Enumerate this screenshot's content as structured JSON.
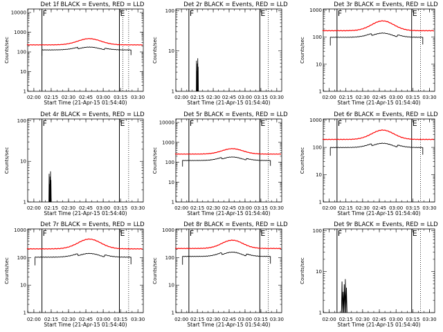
{
  "chart_data": [
    {
      "type": "line",
      "title": "Det 1f BLACK = Events, RED = LLD",
      "ylabel": "Counts/sec",
      "xlabel": "Start Time (21-Apr-15 01:54:40)",
      "xticks": [
        "02:00",
        "02:15",
        "02:30",
        "02:45",
        "03:00",
        "03:15",
        "03:30"
      ],
      "yticks": [
        "1",
        "10",
        "100",
        "1000",
        "10000"
      ],
      "ylim": [
        1,
        15000
      ],
      "xlim": [
        "01:54:40",
        "03:34:40"
      ],
      "scale_y": "log",
      "markers": [
        {
          "label": "F",
          "time": "02:07",
          "style": "solid"
        },
        {
          "label": "E",
          "time": "03:14",
          "style": "solid"
        },
        {
          "label": "",
          "time": "03:17",
          "style": "dotted"
        },
        {
          "label": "",
          "time": "03:22",
          "style": "dotted"
        }
      ],
      "series": [
        {
          "color": "#000000",
          "shape": "orbit",
          "min": 115,
          "max": 210,
          "start": "02:07",
          "end": "03:24",
          "style": "events"
        },
        {
          "color": "#ff0000",
          "shape": "orbit",
          "min": 200,
          "max": 470,
          "start": "01:54",
          "end": "03:34",
          "style": "lld"
        }
      ]
    },
    {
      "type": "line",
      "title": "Det 2r BLACK = Events, RED = LLD",
      "ylabel": "Counts/sec",
      "xlabel": "Start Time (21-Apr-15 01:54:40)",
      "xticks": [
        "02:00",
        "02:15",
        "02:30",
        "02:45",
        "03:00",
        "03:15",
        "03:30"
      ],
      "yticks": [
        "1",
        "10",
        "100"
      ],
      "ylim": [
        1,
        110
      ],
      "xlim": [
        "01:54:40",
        "03:34:40"
      ],
      "scale_y": "log",
      "markers": [
        {
          "label": "F",
          "time": "02:07",
          "style": "solid"
        },
        {
          "label": "E",
          "time": "03:14",
          "style": "solid"
        },
        {
          "label": "",
          "time": "03:22",
          "style": "dotted"
        }
      ],
      "series": [
        {
          "color": "#000000",
          "shape": "spike",
          "min": 1,
          "max": 7,
          "start": "02:14",
          "end": "02:16",
          "style": "events"
        }
      ]
    },
    {
      "type": "line",
      "title": "Det 3r BLACK = Events, RED = LLD",
      "ylabel": "Counts/sec",
      "xlabel": "Start Time (21-Apr-15 01:54:40)",
      "xticks": [
        "02:00",
        "02:15",
        "02:30",
        "02:45",
        "03:00",
        "03:15",
        "03:30"
      ],
      "yticks": [
        "1",
        "10",
        "100",
        "1000"
      ],
      "ylim": [
        1,
        1100
      ],
      "xlim": [
        "01:54:40",
        "03:34:40"
      ],
      "scale_y": "log",
      "markers": [
        {
          "label": "F",
          "time": "02:07",
          "style": "solid"
        },
        {
          "label": "E",
          "time": "03:14",
          "style": "solid"
        },
        {
          "label": "",
          "time": "03:22",
          "style": "dotted"
        }
      ],
      "series": [
        {
          "color": "#000000",
          "shape": "orbit",
          "min": 90,
          "max": 170,
          "start": "02:01",
          "end": "03:24",
          "style": "events"
        },
        {
          "color": "#ff0000",
          "shape": "orbit",
          "min": 150,
          "max": 400,
          "start": "01:54",
          "end": "03:34",
          "style": "lld"
        }
      ]
    },
    {
      "type": "line",
      "title": "Det 4r BLACK = Events, RED = LLD",
      "ylabel": "Counts/sec",
      "xlabel": "Start Time (21-Apr-15 01:54:40)",
      "xticks": [
        "02:00",
        "02:15",
        "02:30",
        "02:45",
        "03:00",
        "03:15",
        "03:30"
      ],
      "yticks": [
        "1",
        "10",
        "100"
      ],
      "ylim": [
        1,
        110
      ],
      "xlim": [
        "01:54:40",
        "03:34:40"
      ],
      "scale_y": "log",
      "markers": [
        {
          "label": "F",
          "time": "02:07",
          "style": "solid"
        },
        {
          "label": "E",
          "time": "03:14",
          "style": "solid"
        },
        {
          "label": "",
          "time": "03:22",
          "style": "dotted"
        }
      ],
      "series": [
        {
          "color": "#000000",
          "shape": "spike",
          "min": 1,
          "max": 6,
          "start": "02:13",
          "end": "02:15",
          "style": "events"
        }
      ]
    },
    {
      "type": "line",
      "title": "Det 5r BLACK = Events, RED = LLD",
      "ylabel": "Counts/sec",
      "xlabel": "Start Time (21-Apr-15 01:54:40)",
      "xticks": [
        "02:00",
        "02:15",
        "02:30",
        "02:45",
        "03:00",
        "03:15",
        "03:30"
      ],
      "yticks": [
        "1",
        "10",
        "100",
        "1000",
        "10000"
      ],
      "ylim": [
        1,
        15000
      ],
      "xlim": [
        "01:54:40",
        "03:34:40"
      ],
      "scale_y": "log",
      "markers": [
        {
          "label": "F",
          "time": "02:07",
          "style": "solid"
        },
        {
          "label": "E",
          "time": "03:14",
          "style": "solid"
        },
        {
          "label": "",
          "time": "03:22",
          "style": "dotted"
        }
      ],
      "series": [
        {
          "color": "#000000",
          "shape": "orbit",
          "min": 110,
          "max": 220,
          "start": "02:01",
          "end": "03:24",
          "style": "events"
        },
        {
          "color": "#ff0000",
          "shape": "orbit",
          "min": 230,
          "max": 480,
          "start": "01:54",
          "end": "03:34",
          "style": "lld"
        }
      ]
    },
    {
      "type": "line",
      "title": "Det 6r BLACK = Events, RED = LLD",
      "ylabel": "Counts/sec",
      "xlabel": "Start Time (21-Apr-15 01:54:40)",
      "xticks": [
        "02:00",
        "02:15",
        "02:30",
        "02:45",
        "03:00",
        "03:15",
        "03:30"
      ],
      "yticks": [
        "1",
        "10",
        "100",
        "1000"
      ],
      "ylim": [
        1,
        1100
      ],
      "xlim": [
        "01:54:40",
        "03:34:40"
      ],
      "scale_y": "log",
      "markers": [
        {
          "label": "F",
          "time": "02:07",
          "style": "solid"
        },
        {
          "label": "E",
          "time": "03:14",
          "style": "solid"
        },
        {
          "label": "",
          "time": "03:22",
          "style": "dotted"
        }
      ],
      "series": [
        {
          "color": "#000000",
          "shape": "orbit",
          "min": 90,
          "max": 170,
          "start": "02:01",
          "end": "03:24",
          "style": "events"
        },
        {
          "color": "#ff0000",
          "shape": "orbit",
          "min": 170,
          "max": 430,
          "start": "01:54",
          "end": "03:34",
          "style": "lld"
        }
      ]
    },
    {
      "type": "line",
      "title": "Det 7r BLACK = Events, RED = LLD",
      "ylabel": "Counts/sec",
      "xlabel": "Start Time (21-Apr-15 01:54:40)",
      "xticks": [
        "02:00",
        "02:15",
        "02:30",
        "02:45",
        "03:00",
        "03:15",
        "03:30"
      ],
      "yticks": [
        "1",
        "10",
        "100",
        "1000"
      ],
      "ylim": [
        1,
        1100
      ],
      "xlim": [
        "01:54:40",
        "03:34:40"
      ],
      "scale_y": "log",
      "markers": [
        {
          "label": "F",
          "time": "02:07",
          "style": "solid"
        },
        {
          "label": "E",
          "time": "03:14",
          "style": "solid"
        },
        {
          "label": "",
          "time": "03:22",
          "style": "dotted"
        }
      ],
      "series": [
        {
          "color": "#000000",
          "shape": "orbit",
          "min": 95,
          "max": 170,
          "start": "02:01",
          "end": "03:24",
          "style": "events"
        },
        {
          "color": "#ff0000",
          "shape": "orbit",
          "min": 180,
          "max": 470,
          "start": "01:54",
          "end": "03:34",
          "style": "lld"
        }
      ]
    },
    {
      "type": "line",
      "title": "Det 8r BLACK = Events, RED = LLD",
      "ylabel": "Counts/sec",
      "xlabel": "Start Time (21-Apr-15 01:54:40)",
      "xticks": [
        "02:00",
        "02:15",
        "02:30",
        "02:45",
        "03:00",
        "03:15",
        "03:30"
      ],
      "yticks": [
        "1",
        "10",
        "100",
        "1000"
      ],
      "ylim": [
        1,
        1100
      ],
      "xlim": [
        "01:54:40",
        "03:34:40"
      ],
      "scale_y": "log",
      "markers": [
        {
          "label": "F",
          "time": "02:07",
          "style": "solid"
        },
        {
          "label": "E",
          "time": "03:14",
          "style": "solid"
        },
        {
          "label": "",
          "time": "03:22",
          "style": "dotted"
        }
      ],
      "series": [
        {
          "color": "#000000",
          "shape": "orbit",
          "min": 100,
          "max": 190,
          "start": "02:01",
          "end": "03:24",
          "style": "events"
        },
        {
          "color": "#ff0000",
          "shape": "orbit",
          "min": 190,
          "max": 430,
          "start": "01:54",
          "end": "03:34",
          "style": "lld"
        }
      ]
    },
    {
      "type": "line",
      "title": "Det 9r BLACK = Events, RED = LLD",
      "ylabel": "Counts/sec",
      "xlabel": "Start Time (21-Apr-15 01:54:40)",
      "xticks": [
        "02:00",
        "02:15",
        "02:30",
        "02:45",
        "03:00",
        "03:15",
        "03:30"
      ],
      "yticks": [
        "1",
        "10",
        "100"
      ],
      "ylim": [
        1,
        110
      ],
      "xlim": [
        "01:54:40",
        "03:34:40"
      ],
      "scale_y": "log",
      "markers": [
        {
          "label": "F",
          "time": "02:07",
          "style": "solid"
        },
        {
          "label": "E",
          "time": "03:14",
          "style": "solid"
        },
        {
          "label": "",
          "time": "03:22",
          "style": "dotted"
        }
      ],
      "series": [
        {
          "color": "#000000",
          "shape": "spike",
          "min": 1,
          "max": 7,
          "start": "02:11",
          "end": "02:16",
          "style": "events"
        }
      ]
    }
  ]
}
